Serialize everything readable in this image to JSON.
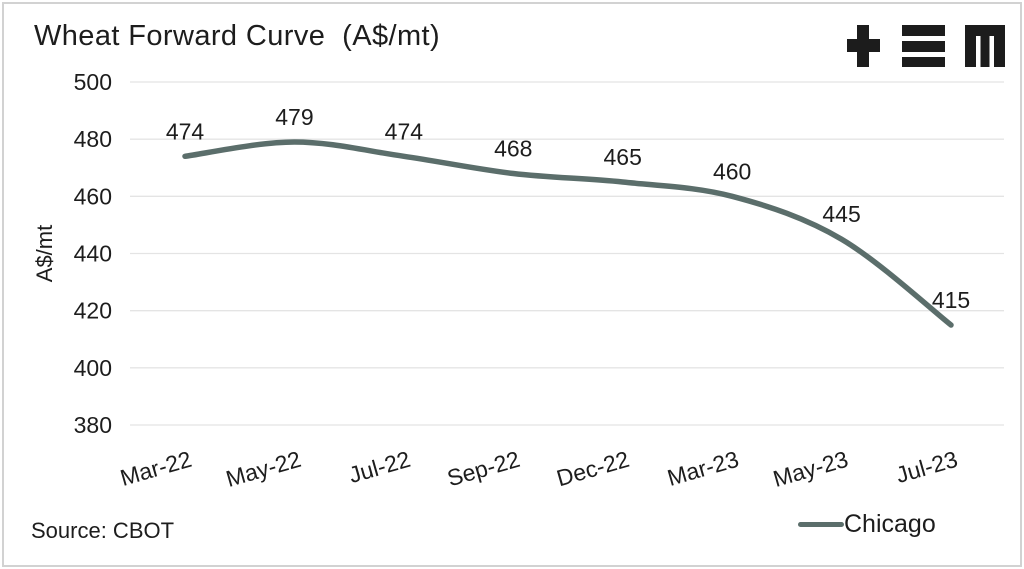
{
  "header": {
    "title": "Wheat Forward Curve  (A$/mt)",
    "logo_glyphs": "+≡M"
  },
  "footer": {
    "source": "Source: CBOT"
  },
  "legend": {
    "label": "Chicago"
  },
  "colors": {
    "line": "#5b6e6b",
    "text": "#1d1d1d",
    "grid": "#e4e4e4",
    "frame_border": "#d2d2d2",
    "background": "#ffffff",
    "logo": "#1c1c1c"
  },
  "chart_data": {
    "type": "line",
    "title": "Wheat Forward Curve (A$/mt)",
    "categories": [
      "Mar-22",
      "May-22",
      "Jul-22",
      "Sep-22",
      "Dec-22",
      "Mar-23",
      "May-23",
      "Jul-23"
    ],
    "series": [
      {
        "name": "Chicago",
        "values": [
          474,
          479,
          474,
          468,
          465,
          460,
          445,
          415
        ],
        "color": "#5b6e6b"
      }
    ],
    "xlabel": "",
    "ylabel": "A$/mt",
    "ylim": [
      380,
      500
    ],
    "yticks": [
      380,
      400,
      420,
      440,
      460,
      480,
      500
    ],
    "grid": "horizontal",
    "data_labels": true,
    "legend_position": "bottom-right",
    "smooth": true
  }
}
